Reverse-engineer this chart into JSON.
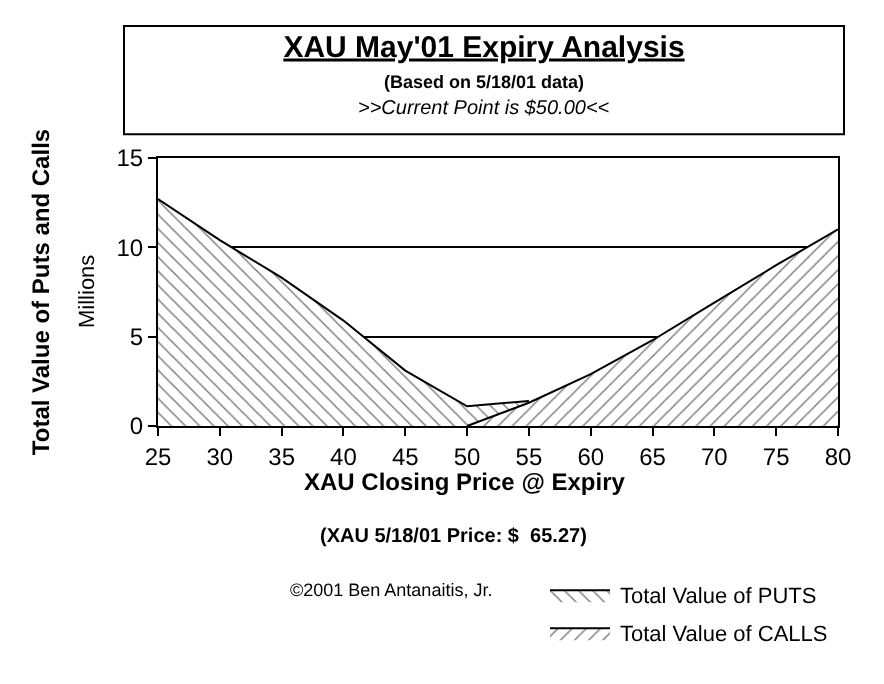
{
  "chart_data": {
    "type": "area",
    "title": "XAU May'01 Expiry Analysis",
    "subtitle": "(Based on 5/18/01 data)",
    "xlabel": "XAU Closing Price @ Expiry",
    "ylabel": "Total Value of Puts and Calls",
    "annotations": [
      ">>Current Point is $50.00<<",
      "Millions",
      "(XAU 5/18/01 Price: $  65.27)",
      "©2001 Ben Antanaitis, Jr."
    ],
    "x": [
      25,
      30,
      35,
      40,
      45,
      50,
      55,
      60,
      65,
      70,
      75,
      80
    ],
    "series": [
      {
        "name": "Total Value of PUTS",
        "color": "#000000",
        "values": [
          12.7,
          10.4,
          8.3,
          5.9,
          3.1,
          1.1,
          1.4,
          null,
          null,
          null,
          null,
          null
        ]
      },
      {
        "name": "Total Value of CALLS",
        "color": "#000000",
        "values": [
          null,
          null,
          null,
          null,
          null,
          0,
          1.3,
          2.9,
          4.8,
          6.9,
          9.0,
          11.0
        ]
      }
    ],
    "xlim": [
      25,
      80
    ],
    "xticks": [
      25,
      30,
      35,
      40,
      45,
      50,
      55,
      60,
      65,
      70,
      75,
      80
    ],
    "ylim": [
      0,
      15
    ],
    "yticks": [
      0,
      5,
      10,
      15
    ],
    "grid": "y",
    "legend": "bottom right"
  }
}
